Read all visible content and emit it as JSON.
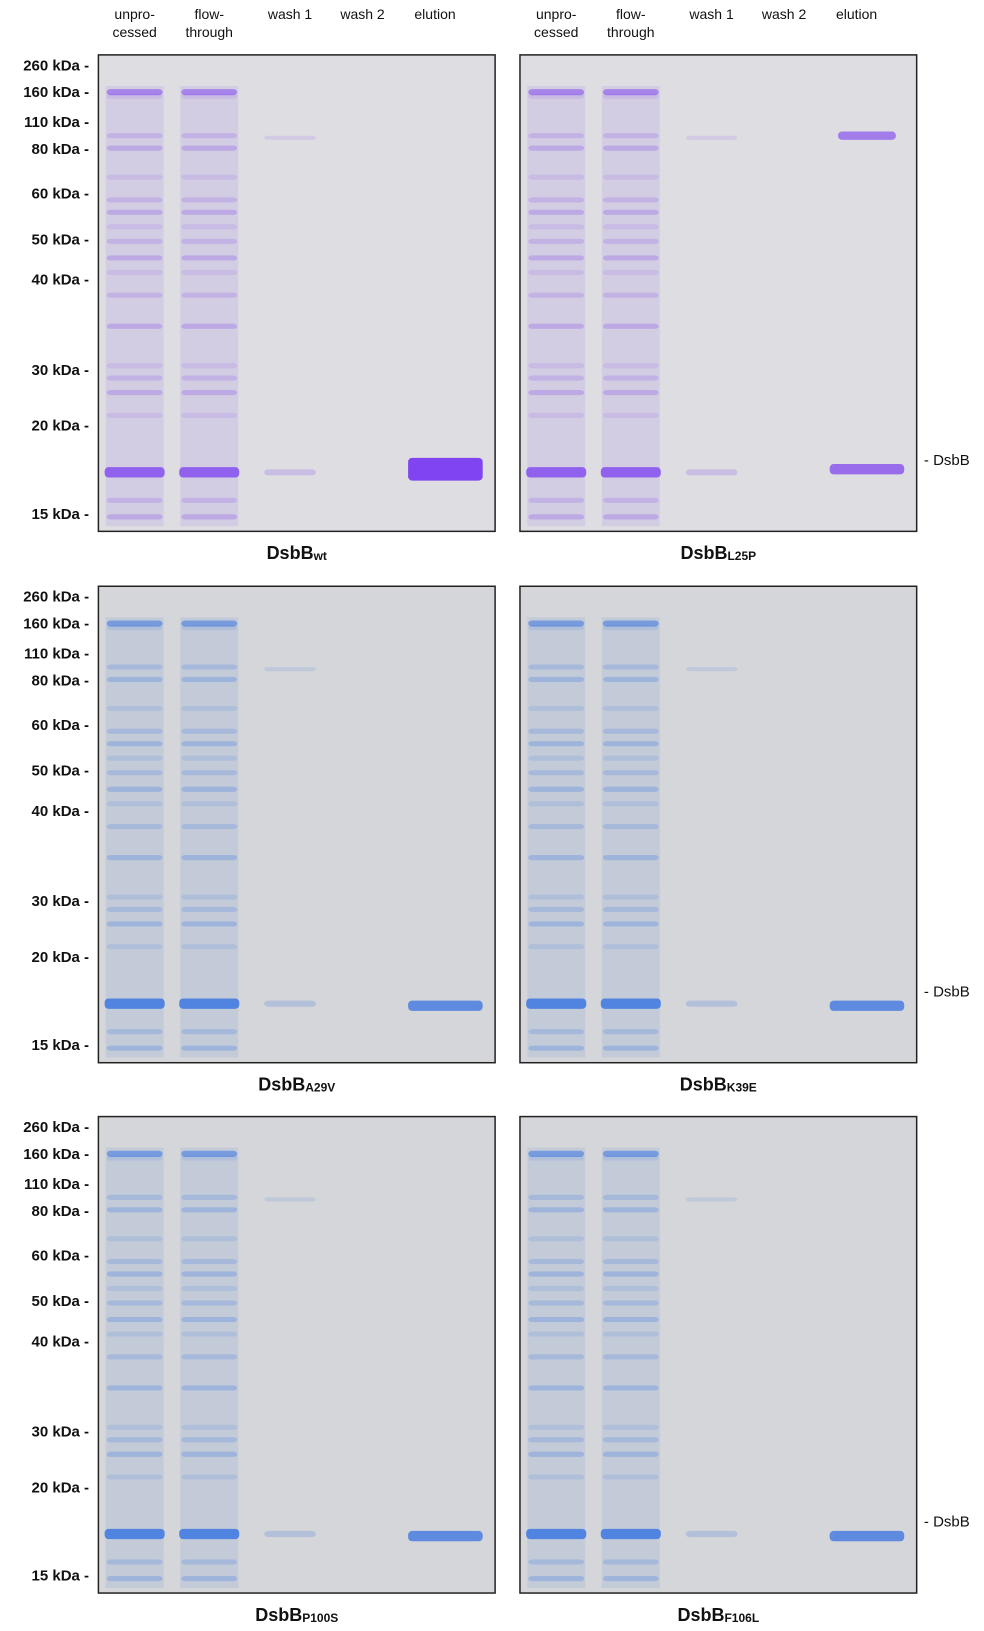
{
  "columns": [
    {
      "lane_labels": [
        [
          "unpro-",
          "cessed"
        ],
        [
          "flow-",
          "through"
        ],
        [
          "wash 1"
        ],
        [
          "wash 2"
        ],
        [
          "elution"
        ]
      ]
    },
    {
      "lane_labels": [
        [
          "unpro-",
          "cessed"
        ],
        [
          "flow-",
          "through"
        ],
        [
          "wash 1"
        ],
        [
          "wash 2"
        ],
        [
          "elution"
        ]
      ]
    }
  ],
  "rows": [
    {
      "markers": [
        "260 kDa -",
        "160 kDa -",
        "110 kDa -",
        "80 kDa -",
        "60 kDa -",
        "50 kDa -",
        "40 kDa -",
        "30 kDa -",
        "20 kDa -",
        "15 kDa -"
      ],
      "gels": [
        {
          "name": "DsbB",
          "variant": "wt"
        },
        {
          "name": "DsbB",
          "variant": "L25P"
        }
      ],
      "band_label": "- DsbB"
    },
    {
      "markers": [
        "260 kDa -",
        "160 kDa -",
        "110 kDa -",
        "80 kDa -",
        "60 kDa -",
        "50 kDa -",
        "40 kDa -",
        "30 kDa -",
        "20 kDa -",
        "15 kDa -"
      ],
      "gels": [
        {
          "name": "DsbB",
          "variant": "A29V"
        },
        {
          "name": "DsbB",
          "variant": "K39E"
        }
      ],
      "band_label": "- DsbB"
    },
    {
      "markers": [
        "260 kDa -",
        "160 kDa -",
        "110 kDa -",
        "80 kDa -",
        "60 kDa -",
        "50 kDa -",
        "40 kDa -",
        "30 kDa -",
        "20 kDa -",
        "15 kDa -"
      ],
      "gels": [
        {
          "name": "DsbB",
          "variant": "P100S"
        },
        {
          "name": "DsbB",
          "variant": "F106L"
        }
      ],
      "band_label": "- DsbB"
    }
  ]
}
